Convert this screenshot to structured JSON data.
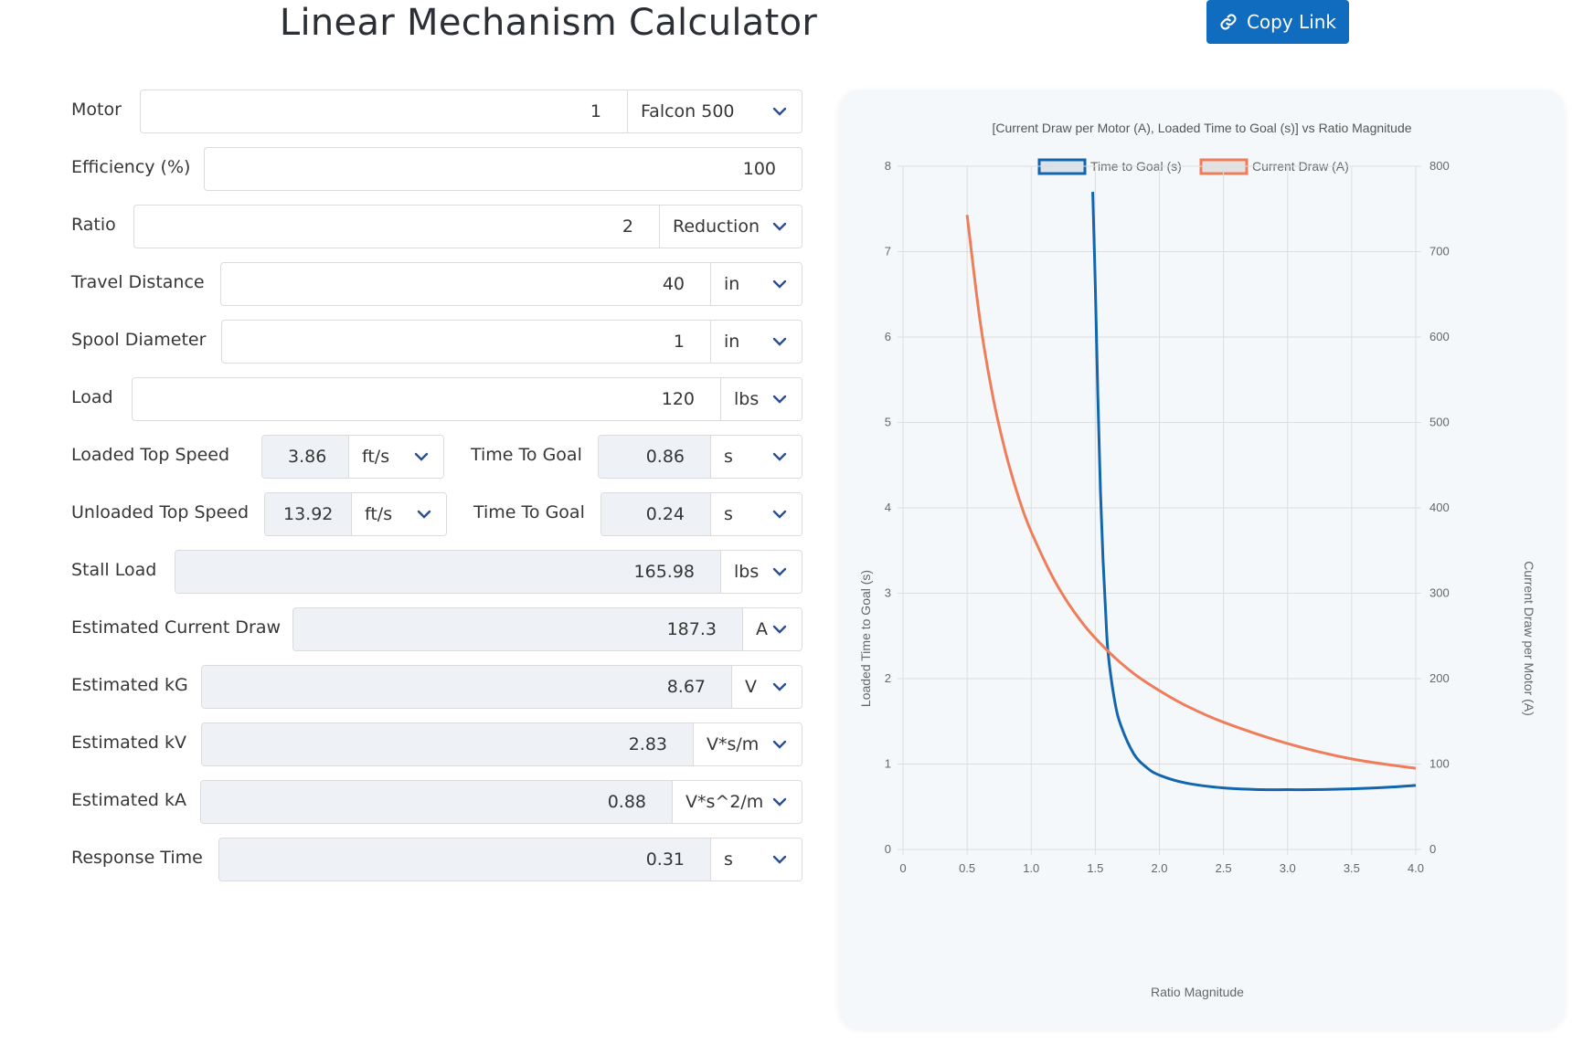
{
  "header": {
    "title": "Linear Mechanism Calculator",
    "copy_link_label": "Copy Link"
  },
  "form": {
    "motor": {
      "label": "Motor",
      "value": "1",
      "unit": "Falcon 500"
    },
    "efficiency": {
      "label": "Efficiency (%)",
      "value": "100"
    },
    "ratio": {
      "label": "Ratio",
      "value": "2",
      "unit": "Reduction"
    },
    "travel_distance": {
      "label": "Travel Distance",
      "value": "40",
      "unit": "in"
    },
    "spool_diameter": {
      "label": "Spool Diameter",
      "value": "1",
      "unit": "in"
    },
    "load": {
      "label": "Load",
      "value": "120",
      "unit": "lbs"
    },
    "loaded_top_speed": {
      "label": "Loaded Top Speed",
      "value": "3.86",
      "unit": "ft/s"
    },
    "loaded_time_to_goal": {
      "label": "Time To Goal",
      "value": "0.86",
      "unit": "s"
    },
    "unloaded_top_speed": {
      "label": "Unloaded Top Speed",
      "value": "13.92",
      "unit": "ft/s"
    },
    "unloaded_time_to_goal": {
      "label": "Time To Goal",
      "value": "0.24",
      "unit": "s"
    },
    "stall_load": {
      "label": "Stall Load",
      "value": "165.98",
      "unit": "lbs"
    },
    "estimated_current_draw": {
      "label": "Estimated Current Draw",
      "value": "187.3",
      "unit": "A"
    },
    "estimated_kg": {
      "label": "Estimated kG",
      "value": "8.67",
      "unit": "V"
    },
    "estimated_kv": {
      "label": "Estimated kV",
      "value": "2.83",
      "unit": "V*s/m"
    },
    "estimated_ka": {
      "label": "Estimated kA",
      "value": "0.88",
      "unit": "V*s^2/m"
    },
    "response_time": {
      "label": "Response Time",
      "value": "0.31",
      "unit": "s"
    }
  },
  "colors": {
    "primary_button": "#0f6cbf",
    "time_series": "#1366ad",
    "current_series": "#ef7d5a"
  },
  "chart_data": {
    "type": "line",
    "title": "[Current Draw per Motor (A), Loaded Time to Goal (s)] vs Ratio Magnitude",
    "xlabel": "Ratio Magnitude",
    "ylabel_left": "Loaded Time to Goal (s)",
    "ylabel_right": "Current Draw per Motor (A)",
    "xlim": [
      0,
      4
    ],
    "ylim_left": [
      0,
      8
    ],
    "ylim_right": [
      0,
      800
    ],
    "x_ticks": [
      "0",
      "0.5",
      "1.0",
      "1.5",
      "2.0",
      "2.5",
      "3.0",
      "3.5",
      "4.0"
    ],
    "y_left_ticks": [
      "0",
      "1",
      "2",
      "3",
      "4",
      "5",
      "6",
      "7",
      "8"
    ],
    "y_right_ticks": [
      "0",
      "100",
      "200",
      "300",
      "400",
      "500",
      "600",
      "700",
      "800"
    ],
    "legend_position": "top",
    "grid": true,
    "series": [
      {
        "name": "Time to Goal (s)",
        "axis": "left",
        "x": [
          1.48,
          1.5,
          1.52,
          1.54,
          1.56,
          1.58,
          1.6,
          1.65,
          1.7,
          1.8,
          1.9,
          2.0,
          2.2,
          2.5,
          2.8,
          3.0,
          3.2,
          3.5,
          3.8,
          4.0
        ],
        "y": [
          7.7,
          6.6,
          5.3,
          4.2,
          3.4,
          2.8,
          2.3,
          1.75,
          1.45,
          1.12,
          0.96,
          0.87,
          0.78,
          0.72,
          0.7,
          0.7,
          0.7,
          0.71,
          0.73,
          0.75
        ]
      },
      {
        "name": "Current Draw (A)",
        "axis": "right",
        "x": [
          0.5,
          0.6,
          0.7,
          0.8,
          0.9,
          1.0,
          1.2,
          1.4,
          1.6,
          1.8,
          2.0,
          2.2,
          2.5,
          3.0,
          3.5,
          4.0
        ],
        "y": [
          743,
          620,
          531,
          465,
          413,
          372,
          310,
          265,
          232,
          206,
          186,
          169,
          149,
          124,
          106,
          95
        ]
      }
    ]
  }
}
